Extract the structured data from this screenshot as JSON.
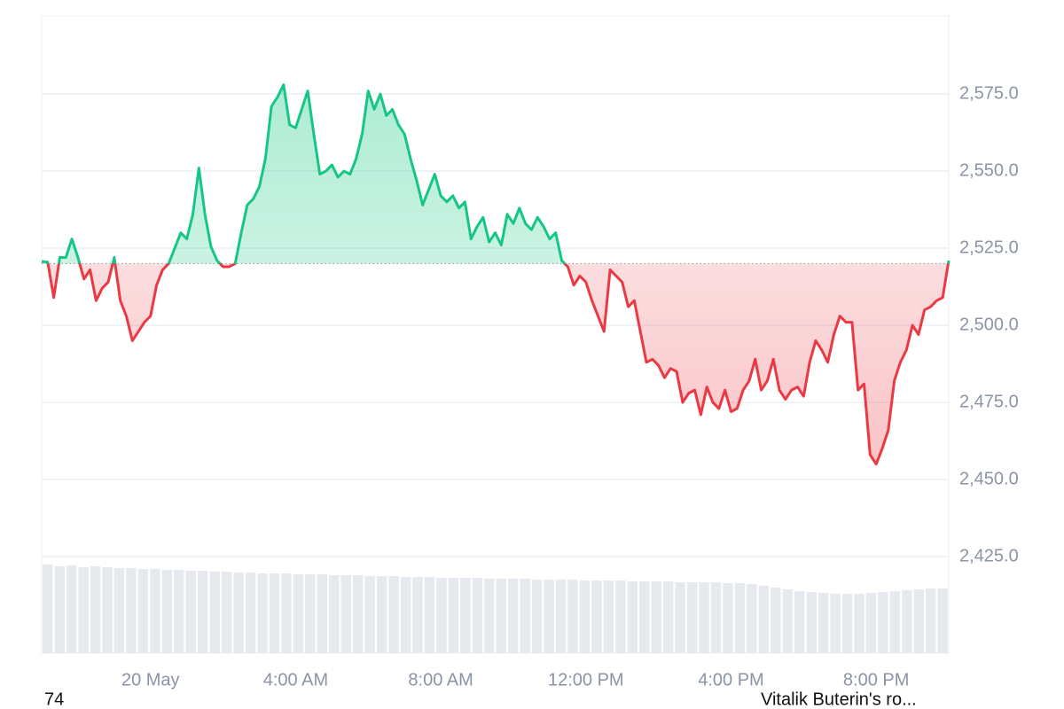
{
  "chart_data": {
    "type": "line",
    "categories": [
      null,
      null,
      null,
      null,
      null,
      null,
      null,
      null,
      null,
      null,
      null,
      null,
      null,
      null,
      null,
      null,
      null,
      null,
      "20 May",
      null,
      null,
      null,
      null,
      null,
      null,
      null,
      null,
      null,
      null,
      null,
      null,
      null,
      null,
      null,
      null,
      null,
      null,
      null,
      null,
      null,
      null,
      null,
      "4:00 AM",
      null,
      null,
      null,
      null,
      null,
      null,
      null,
      null,
      null,
      null,
      null,
      null,
      null,
      null,
      null,
      null,
      null,
      null,
      null,
      null,
      null,
      null,
      null,
      "8:00 AM",
      null,
      null,
      null,
      null,
      null,
      null,
      null,
      null,
      null,
      null,
      null,
      null,
      null,
      null,
      null,
      null,
      null,
      null,
      null,
      null,
      null,
      null,
      null,
      "12:00 PM",
      null,
      null,
      null,
      null,
      null,
      null,
      null,
      null,
      null,
      null,
      null,
      null,
      null,
      null,
      null,
      null,
      null,
      null,
      null,
      null,
      null,
      null,
      null,
      "4:00 PM",
      null,
      null,
      null,
      null,
      null,
      null,
      null,
      null,
      null,
      null,
      null,
      null,
      null,
      null,
      null,
      null,
      null,
      null,
      null,
      null,
      null,
      null,
      null,
      "8:00 PM",
      null,
      null,
      null,
      null,
      null,
      null,
      null,
      null,
      null,
      null,
      null,
      null
    ],
    "values": [
      2520.7,
      2520.5,
      2509,
      2522,
      2522,
      2528,
      2522,
      2515,
      2518,
      2508,
      2512,
      2514,
      2522,
      2508,
      2503,
      2495,
      2498,
      2501,
      2503,
      2513,
      2518,
      2520,
      2525,
      2530,
      2528,
      2536,
      2551,
      2536,
      2525.5,
      2521,
      2519,
      2519,
      2520,
      2530,
      2539,
      2541,
      2545,
      2554,
      2571,
      2574,
      2578,
      2565,
      2564,
      2570,
      2576,
      2562,
      2549,
      2550,
      2552,
      2548,
      2550,
      2549,
      2554,
      2562,
      2576,
      2570,
      2575,
      2568,
      2570,
      2565,
      2562,
      2554,
      2547,
      2539,
      2544,
      2549,
      2542,
      2540,
      2542,
      2538,
      2540,
      2528,
      2532,
      2535,
      2527,
      2530,
      2526,
      2536,
      2533,
      2538,
      2533,
      2531,
      2535,
      2532,
      2528,
      2530,
      2521,
      2519,
      2513,
      2516,
      2514,
      2508,
      2503,
      2498,
      2518,
      2516,
      2514,
      2506,
      2508,
      2498,
      2488,
      2489,
      2487,
      2483,
      2486,
      2485,
      2475,
      2478,
      2479,
      2471,
      2480,
      2475,
      2473,
      2479,
      2472,
      2473,
      2479,
      2482,
      2489,
      2479,
      2482,
      2489,
      2479,
      2476,
      2479,
      2480,
      2477,
      2488,
      2495,
      2492,
      2488,
      2497,
      2503,
      2501,
      2501,
      2479,
      2481,
      2458,
      2455,
      2460,
      2466,
      2482,
      2488,
      2492,
      2500,
      2497,
      2505,
      2506,
      2508,
      2509,
      2521
    ],
    "baseline": 2520,
    "up_color": "#16c784",
    "down_color": "#ea3943",
    "ylim": [
      2393.7,
      2600.3
    ],
    "yticks": [
      {
        "value": 2425,
        "label": "2,425.0"
      },
      {
        "value": 2450,
        "label": "2,450.0"
      },
      {
        "value": 2475,
        "label": "2,475.0"
      },
      {
        "value": 2500,
        "label": "2,500.0"
      },
      {
        "value": 2525,
        "label": "2,525.0"
      },
      {
        "value": 2550,
        "label": "2,550.0"
      },
      {
        "value": 2575,
        "label": "2,575.0"
      }
    ],
    "grid": true,
    "volume": {
      "color": "#e6eaef",
      "vlim": [
        0,
        100
      ],
      "values": [
        100,
        98,
        99,
        97,
        98,
        97,
        96,
        96,
        95,
        95,
        94,
        94,
        93,
        93,
        92,
        92,
        91,
        91,
        90,
        90,
        90,
        89,
        89,
        89,
        88,
        88,
        88,
        87,
        87,
        87,
        86,
        86,
        86,
        85,
        85,
        85,
        85,
        84,
        84,
        84,
        84,
        83,
        83,
        83,
        83,
        82,
        82,
        82,
        82,
        81,
        81,
        81,
        81,
        80,
        80,
        80,
        80,
        79,
        79,
        78,
        76,
        74,
        72,
        70,
        69,
        68,
        67,
        67,
        67,
        68,
        69,
        70,
        71,
        72,
        73,
        73
      ]
    }
  },
  "footer": {
    "left": "74",
    "right": "Vitalik Buterin's ro..."
  }
}
